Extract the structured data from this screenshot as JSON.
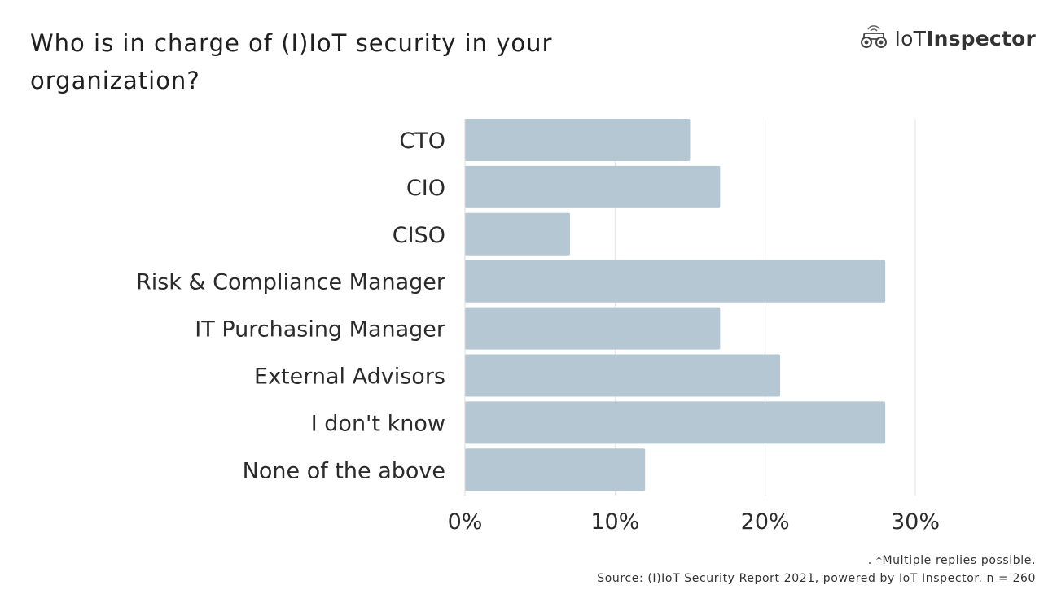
{
  "logo": {
    "text_light": "IoT",
    "text_bold": "Inspector",
    "icon": "binoculars-icon"
  },
  "footnote": {
    "line1": ". *Multiple replies possible.",
    "line2": "Source: (I)IoT Security Report 2021, powered by IoT Inspector. n = 260"
  },
  "colors": {
    "bar": "#b5c7d3",
    "grid": "#e6e6e6",
    "text": "#2b2b2b"
  },
  "chart_data": {
    "type": "bar",
    "orientation": "horizontal",
    "title": "Who is in charge of (I)IoT security in your organization?",
    "categories": [
      "CTO",
      "CIO",
      "CISO",
      "Risk & Compliance Manager",
      "IT Purchasing Manager",
      "External Advisors",
      "I don't know",
      "None of the above"
    ],
    "values": [
      15,
      17,
      7,
      28,
      17,
      21,
      28,
      12
    ],
    "unit": "%",
    "xlim": [
      0,
      30
    ],
    "xticks": [
      0,
      10,
      20,
      30
    ],
    "xtick_labels": [
      "0%",
      "10%",
      "20%",
      "30%"
    ],
    "grid": true,
    "legend": "none"
  }
}
